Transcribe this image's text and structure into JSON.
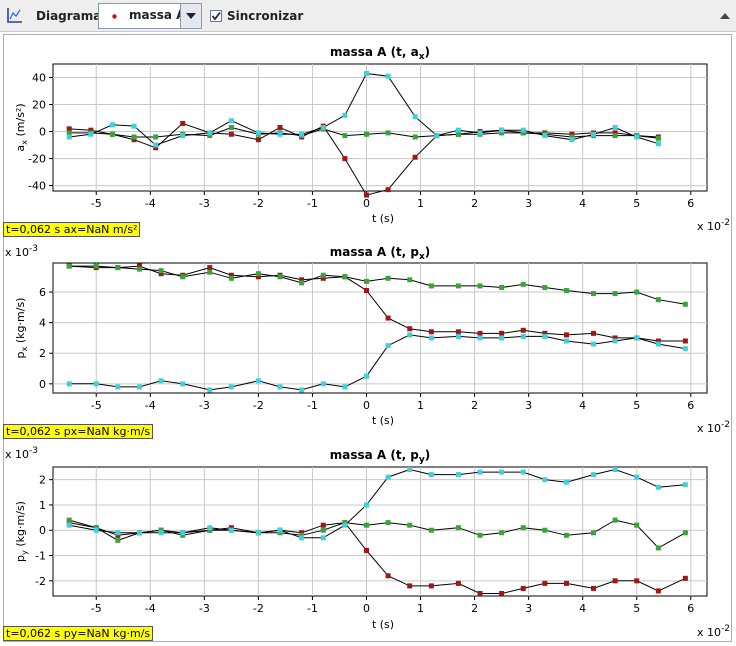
{
  "toolbar": {
    "diagram_label": "Diagrama",
    "series_select": "massa A",
    "sync_label": "Sincronizar",
    "sync_checked": true
  },
  "chart_data": [
    {
      "type": "scatter",
      "title_main": "massa A (t, a",
      "title_sub": "x",
      "title_end": ")",
      "ylabel_main": "a",
      "ylabel_sub": "x",
      "ylabel_end": " (m/s²)",
      "xlabel": "t (s)",
      "x_multiplier": "x 10",
      "x_multiplier_exp": "-2",
      "y_multiplier": "",
      "y_multiplier_exp": "",
      "readout": "t=0,062 s  ax=NaN m/s²",
      "xlim": [
        -5.8,
        6.3
      ],
      "ylim": [
        -44,
        50
      ],
      "xticks": [
        -5,
        -4,
        -3,
        -2,
        -1,
        0,
        1,
        2,
        3,
        4,
        5,
        6
      ],
      "yticks": [
        -40,
        -20,
        0,
        20,
        40
      ],
      "grid": true,
      "series": [
        {
          "color": "#a31515",
          "x": [
            -5.5,
            -5.1,
            -4.7,
            -4.3,
            -3.9,
            -3.4,
            -2.9,
            -2.5,
            -2.0,
            -1.6,
            -1.2,
            -0.8,
            -0.4,
            0.0,
            0.4,
            0.9,
            1.3,
            1.7,
            2.1,
            2.5,
            2.9,
            3.3,
            3.8,
            4.2,
            4.6,
            5.0,
            5.4
          ],
          "y": [
            2,
            1,
            -2,
            -6,
            -12,
            6,
            -1,
            -2,
            -6,
            3,
            -4,
            4,
            -20,
            -47,
            -43,
            -19,
            -3,
            -2,
            0,
            1,
            -1,
            -1,
            -2,
            -1,
            -1,
            -3,
            -4
          ]
        },
        {
          "color": "#3aa33a",
          "x": [
            -5.5,
            -5.1,
            -4.7,
            -4.3,
            -3.9,
            -3.4,
            -2.9,
            -2.5,
            -2.0,
            -1.6,
            -1.2,
            -0.8,
            -0.4,
            0.0,
            0.4,
            0.9,
            1.3,
            1.7,
            2.1,
            2.5,
            2.9,
            3.3,
            3.8,
            4.2,
            4.6,
            5.0,
            5.4
          ],
          "y": [
            -1,
            -1,
            -2,
            -4,
            -4,
            -2,
            -3,
            3,
            -2,
            -1,
            -3,
            2,
            -3,
            -2,
            -1,
            -4,
            -3,
            -2,
            -2,
            -1,
            -1,
            -2,
            -4,
            -3,
            -3,
            -3,
            -5
          ]
        },
        {
          "color": "#40d0dc",
          "x": [
            -5.5,
            -5.1,
            -4.7,
            -4.3,
            -3.9,
            -3.4,
            -2.9,
            -2.5,
            -2.0,
            -1.6,
            -1.2,
            -0.8,
            -0.4,
            0.0,
            0.4,
            0.9,
            1.3,
            1.7,
            2.1,
            2.5,
            2.9,
            3.3,
            3.8,
            4.2,
            4.6,
            5.0,
            5.4
          ],
          "y": [
            -4,
            -2,
            5,
            4,
            -10,
            -3,
            -1,
            8,
            -1,
            -2,
            -2,
            3,
            12,
            43,
            41,
            11,
            -3,
            1,
            -1,
            1,
            1,
            -3,
            -6,
            -2,
            3,
            -4,
            -9
          ]
        }
      ]
    },
    {
      "type": "scatter",
      "title_main": "massa A (t, p",
      "title_sub": "x",
      "title_end": ")",
      "ylabel_main": "p",
      "ylabel_sub": "x",
      "ylabel_end": " (kg·m/s)",
      "xlabel": "t (s)",
      "x_multiplier": "x 10",
      "x_multiplier_exp": "-2",
      "y_multiplier": "x 10",
      "y_multiplier_exp": "-3",
      "readout": "t=0,062 s  px=NaN kg·m/s",
      "xlim": [
        -5.8,
        6.3
      ],
      "ylim": [
        -0.6,
        7.9
      ],
      "xticks": [
        -5,
        -4,
        -3,
        -2,
        -1,
        0,
        1,
        2,
        3,
        4,
        5,
        6
      ],
      "yticks": [
        0,
        2,
        4,
        6
      ],
      "grid": true,
      "series": [
        {
          "color": "#a31515",
          "x": [
            -5.5,
            -5.0,
            -4.6,
            -4.2,
            -3.8,
            -3.4,
            -2.9,
            -2.5,
            -2.0,
            -1.6,
            -1.2,
            -0.8,
            -0.4,
            0.0,
            0.4,
            0.8,
            1.2,
            1.7,
            2.1,
            2.5,
            2.9,
            3.3,
            3.7,
            4.2,
            4.6,
            5.0,
            5.4,
            5.9
          ],
          "y": [
            7.7,
            7.6,
            7.6,
            7.7,
            7.2,
            7.1,
            7.6,
            7.1,
            7.0,
            7.1,
            6.8,
            6.9,
            7.0,
            6.1,
            4.3,
            3.6,
            3.4,
            3.4,
            3.3,
            3.3,
            3.5,
            3.3,
            3.2,
            3.3,
            3.0,
            3.0,
            2.8,
            2.8
          ]
        },
        {
          "color": "#3aa33a",
          "x": [
            -5.5,
            -5.0,
            -4.6,
            -4.2,
            -3.8,
            -3.4,
            -2.9,
            -2.5,
            -2.0,
            -1.6,
            -1.2,
            -0.8,
            -0.4,
            0.0,
            0.4,
            0.8,
            1.2,
            1.7,
            2.1,
            2.5,
            2.9,
            3.3,
            3.7,
            4.2,
            4.6,
            5.0,
            5.4,
            5.9
          ],
          "y": [
            7.7,
            7.7,
            7.6,
            7.5,
            7.4,
            7.0,
            7.3,
            6.9,
            7.2,
            7.0,
            6.6,
            7.1,
            7.0,
            6.7,
            6.9,
            6.8,
            6.4,
            6.4,
            6.4,
            6.3,
            6.5,
            6.3,
            6.1,
            5.9,
            5.9,
            6.0,
            5.5,
            5.2
          ]
        },
        {
          "color": "#40d0dc",
          "x": [
            -5.5,
            -5.0,
            -4.6,
            -4.2,
            -3.8,
            -3.4,
            -2.9,
            -2.5,
            -2.0,
            -1.6,
            -1.2,
            -0.8,
            -0.4,
            0.0,
            0.4,
            0.8,
            1.2,
            1.7,
            2.1,
            2.5,
            2.9,
            3.3,
            3.7,
            4.2,
            4.6,
            5.0,
            5.4,
            5.9
          ],
          "y": [
            0.0,
            0.0,
            -0.2,
            -0.2,
            0.2,
            0.0,
            -0.4,
            -0.2,
            0.2,
            -0.2,
            -0.4,
            0.0,
            -0.2,
            0.5,
            2.5,
            3.2,
            3.0,
            3.1,
            3.0,
            3.0,
            3.1,
            3.1,
            2.8,
            2.6,
            2.8,
            3.0,
            2.6,
            2.3
          ]
        }
      ]
    },
    {
      "type": "scatter",
      "title_main": "massa A (t, p",
      "title_sub": "y",
      "title_end": ")",
      "ylabel_main": "p",
      "ylabel_sub": "y",
      "ylabel_end": " (kg·m/s)",
      "xlabel": "t (s)",
      "x_multiplier": "x 10",
      "x_multiplier_exp": "-2",
      "y_multiplier": "x 10",
      "y_multiplier_exp": "-3",
      "readout": "t=0,062 s  py=NaN kg·m/s",
      "xlim": [
        -5.8,
        6.3
      ],
      "ylim": [
        -2.6,
        2.5
      ],
      "xticks": [
        -5,
        -4,
        -3,
        -2,
        -1,
        0,
        1,
        2,
        3,
        4,
        5,
        6
      ],
      "yticks": [
        -2,
        -1,
        0,
        1,
        2
      ],
      "grid": true,
      "series": [
        {
          "color": "#a31515",
          "x": [
            -5.5,
            -5.0,
            -4.6,
            -4.2,
            -3.8,
            -3.4,
            -2.9,
            -2.5,
            -2.0,
            -1.6,
            -1.2,
            -0.8,
            -0.4,
            0.0,
            0.4,
            0.8,
            1.2,
            1.7,
            2.1,
            2.5,
            2.9,
            3.3,
            3.7,
            4.2,
            4.6,
            5.0,
            5.4,
            5.9
          ],
          "y": [
            0.3,
            0.1,
            -0.2,
            -0.1,
            0.0,
            -0.1,
            0.0,
            0.1,
            -0.1,
            0.0,
            -0.1,
            0.2,
            0.3,
            -0.8,
            -1.8,
            -2.2,
            -2.2,
            -2.1,
            -2.5,
            -2.5,
            -2.3,
            -2.1,
            -2.1,
            -2.3,
            -2.0,
            -2.0,
            -2.4,
            -1.9
          ]
        },
        {
          "color": "#3aa33a",
          "x": [
            -5.5,
            -5.0,
            -4.6,
            -4.2,
            -3.8,
            -3.4,
            -2.9,
            -2.5,
            -2.0,
            -1.6,
            -1.2,
            -0.8,
            -0.4,
            0.0,
            0.4,
            0.8,
            1.2,
            1.7,
            2.1,
            2.5,
            2.9,
            3.3,
            3.7,
            4.2,
            4.6,
            5.0,
            5.4,
            5.9
          ],
          "y": [
            0.4,
            0.1,
            -0.4,
            -0.1,
            0.0,
            -0.2,
            0.0,
            0.0,
            -0.1,
            -0.1,
            -0.2,
            0.0,
            0.3,
            0.2,
            0.3,
            0.2,
            0.0,
            0.1,
            -0.2,
            -0.1,
            0.1,
            0.0,
            -0.2,
            -0.1,
            0.4,
            0.2,
            -0.7,
            -0.1
          ]
        },
        {
          "color": "#40d0dc",
          "x": [
            -5.5,
            -5.0,
            -4.6,
            -4.2,
            -3.8,
            -3.4,
            -2.9,
            -2.5,
            -2.0,
            -1.6,
            -1.2,
            -0.8,
            -0.4,
            0.0,
            0.4,
            0.8,
            1.2,
            1.7,
            2.1,
            2.5,
            2.9,
            3.3,
            3.7,
            4.2,
            4.6,
            5.0,
            5.4,
            5.9
          ],
          "y": [
            0.2,
            0.0,
            -0.1,
            -0.1,
            -0.1,
            -0.1,
            0.1,
            0.0,
            -0.1,
            0.0,
            -0.3,
            -0.3,
            0.2,
            1.0,
            2.1,
            2.4,
            2.2,
            2.2,
            2.3,
            2.3,
            2.3,
            2.0,
            1.9,
            2.2,
            2.4,
            2.1,
            1.7,
            1.8
          ]
        }
      ]
    }
  ]
}
